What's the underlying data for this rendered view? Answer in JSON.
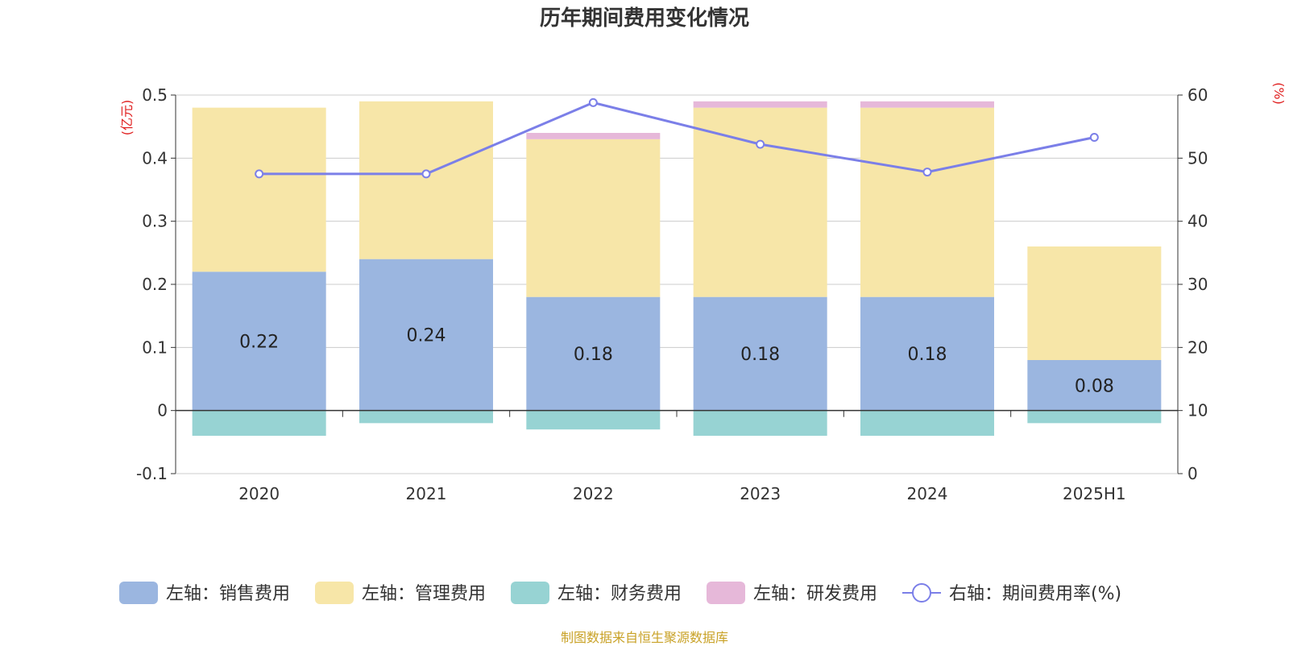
{
  "chart_data": {
    "type": "bar",
    "title": "历年期间费用变化情况",
    "categories": [
      "2020",
      "2021",
      "2022",
      "2023",
      "2024",
      "2025H1"
    ],
    "left_axis": {
      "unit_label": "(亿元)",
      "range": [
        -0.1,
        0.5
      ],
      "ticks": [
        "-0.1",
        "0",
        "0.1",
        "0.2",
        "0.3",
        "0.4",
        "0.5"
      ],
      "tick_values": [
        -0.1,
        0,
        0.1,
        0.2,
        0.3,
        0.4,
        0.5
      ]
    },
    "right_axis": {
      "unit_label": "(%)",
      "range": [
        0,
        60
      ],
      "ticks": [
        "0",
        "10",
        "20",
        "30",
        "40",
        "50",
        "60"
      ],
      "tick_values": [
        0,
        10,
        20,
        30,
        40,
        50,
        60
      ]
    },
    "series": [
      {
        "name": "左轴：销售费用",
        "kind": "stacked-bar",
        "axis": "left",
        "color": "#9bb6e0",
        "values": [
          0.22,
          0.24,
          0.18,
          0.18,
          0.18,
          0.08
        ],
        "labels": [
          "0.22",
          "0.24",
          "0.18",
          "0.18",
          "0.18",
          "0.08"
        ]
      },
      {
        "name": "左轴：管理费用",
        "kind": "stacked-bar",
        "axis": "left",
        "color": "#f7e6a8",
        "values": [
          0.26,
          0.25,
          0.25,
          0.3,
          0.3,
          0.18
        ]
      },
      {
        "name": "左轴：财务费用",
        "kind": "stacked-bar",
        "axis": "left",
        "color": "#97d3d3",
        "values": [
          -0.04,
          -0.02,
          -0.03,
          -0.04,
          -0.04,
          -0.02
        ]
      },
      {
        "name": "左轴：研发费用",
        "kind": "stacked-bar",
        "axis": "left",
        "color": "#e6b8d9",
        "values": [
          0,
          0,
          0.01,
          0.01,
          0.01,
          0
        ]
      },
      {
        "name": "右轴：期间费用率(%)",
        "kind": "line",
        "axis": "right",
        "color": "#7b7fe8",
        "values": [
          47.5,
          47.5,
          58.8,
          52.2,
          47.8,
          53.3
        ]
      }
    ],
    "grid": true,
    "legend_position": "bottom"
  },
  "source_text": "制图数据来自恒生聚源数据库"
}
